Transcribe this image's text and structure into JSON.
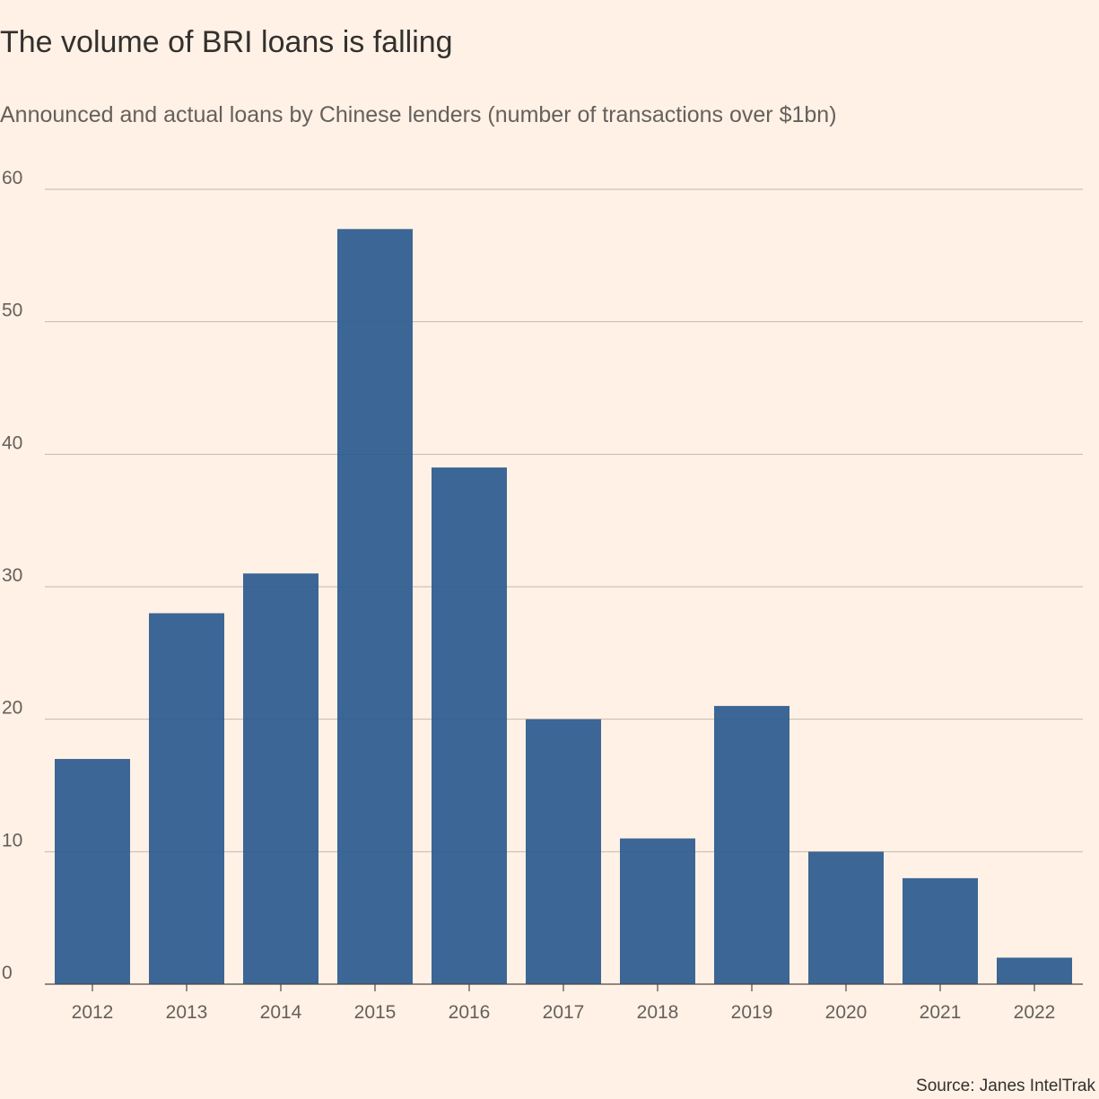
{
  "header": {
    "title": "The volume of BRI loans is falling",
    "subtitle": "Announced and actual loans by Chinese lenders (number of transactions over $1bn)"
  },
  "footer": {
    "source": "Source: Janes IntelTrak"
  },
  "colors": {
    "background": "#FFF1E5",
    "bar": "#2B5A8E",
    "grid": "#C2B8AE",
    "text": "#33302E"
  },
  "chart_data": {
    "type": "bar",
    "title": "The volume of BRI loans is falling",
    "subtitle": "Announced and actual loans by Chinese lenders (number of transactions over $1bn)",
    "xlabel": "",
    "ylabel": "",
    "categories": [
      "2012",
      "2013",
      "2014",
      "2015",
      "2016",
      "2017",
      "2018",
      "2019",
      "2020",
      "2021",
      "2022"
    ],
    "values": [
      17,
      28,
      31,
      57,
      39,
      20,
      11,
      21,
      10,
      8,
      2
    ],
    "ylim": [
      0,
      60
    ],
    "yticks": [
      0,
      10,
      20,
      30,
      40,
      50,
      60
    ],
    "grid": true,
    "legend": "none"
  }
}
